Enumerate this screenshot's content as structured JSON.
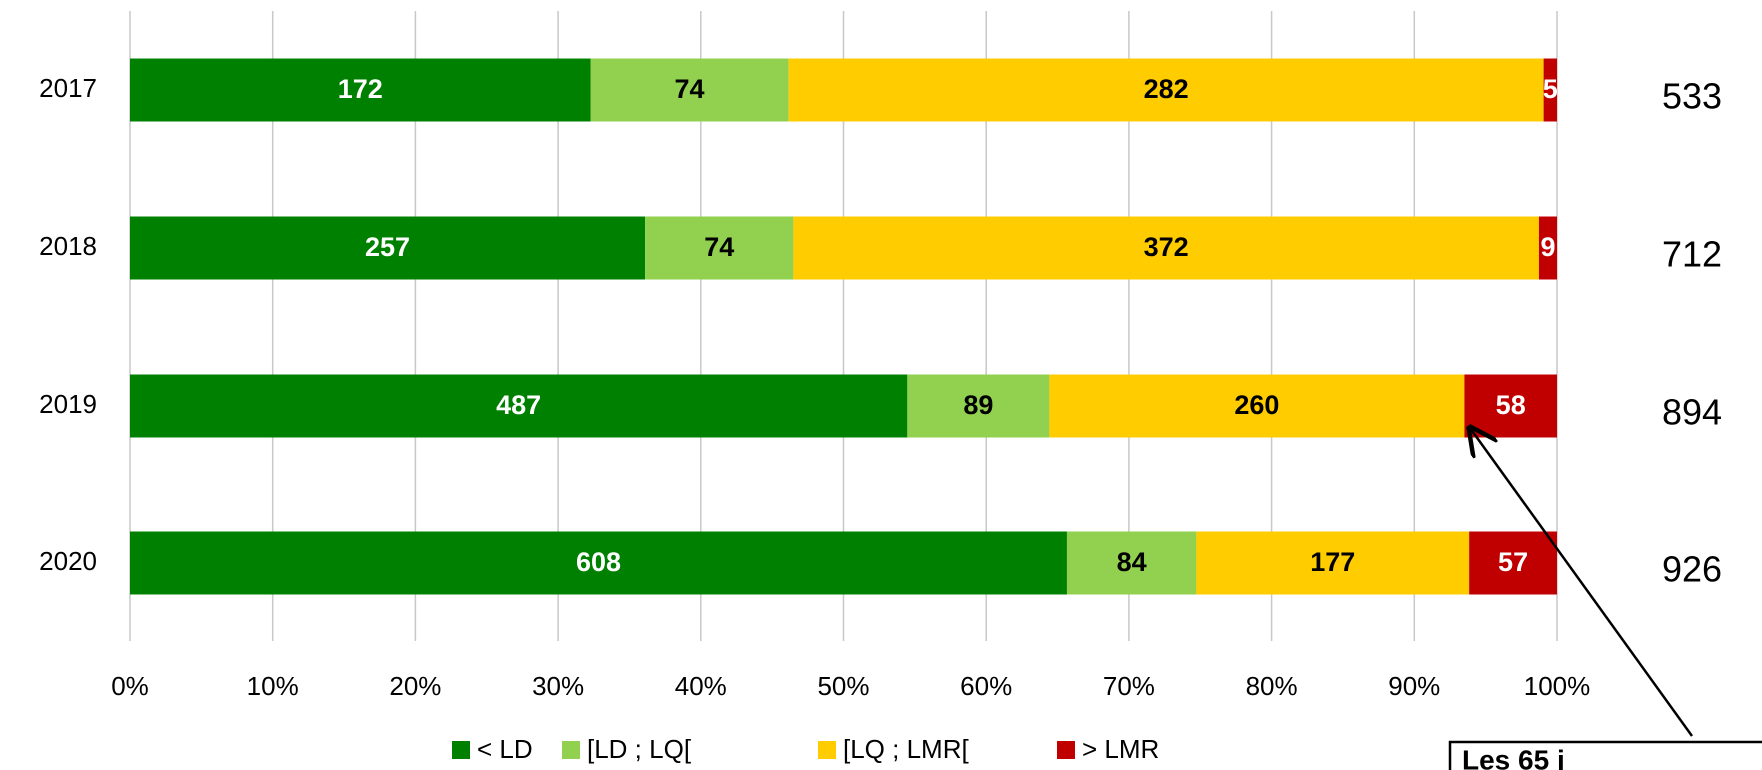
{
  "chart_data": {
    "type": "stacked_bar_percent",
    "categories": [
      "2017",
      "2018",
      "2019",
      "2020"
    ],
    "series": [
      {
        "name": "< LD",
        "color": "#008000",
        "values": [
          172,
          257,
          487,
          608
        ]
      },
      {
        "name": "[LD ; LQ[",
        "color": "#92d050",
        "values": [
          74,
          74,
          89,
          84
        ]
      },
      {
        "name": "[LQ ; LMR[",
        "color": "#ffcc00",
        "values": [
          282,
          372,
          260,
          177
        ]
      },
      {
        "name": "> LMR",
        "color": "#c00000",
        "values": [
          5,
          9,
          58,
          57
        ]
      }
    ],
    "totals": [
      533,
      712,
      894,
      926
    ],
    "xlim": [
      0,
      100
    ],
    "xticks": [
      {
        "value": 0,
        "label": "0%"
      },
      {
        "value": 10,
        "label": "10%"
      },
      {
        "value": 20,
        "label": "20%"
      },
      {
        "value": 30,
        "label": "30%"
      },
      {
        "value": 40,
        "label": "40%"
      },
      {
        "value": 50,
        "label": "50%"
      },
      {
        "value": 60,
        "label": "60%"
      },
      {
        "value": 70,
        "label": "70%"
      },
      {
        "value": 80,
        "label": "80%"
      },
      {
        "value": 90,
        "label": "90%"
      },
      {
        "value": 100,
        "label": "100%"
      }
    ],
    "grid": true,
    "legend": "bottom",
    "annotation": "Les 65 j"
  }
}
